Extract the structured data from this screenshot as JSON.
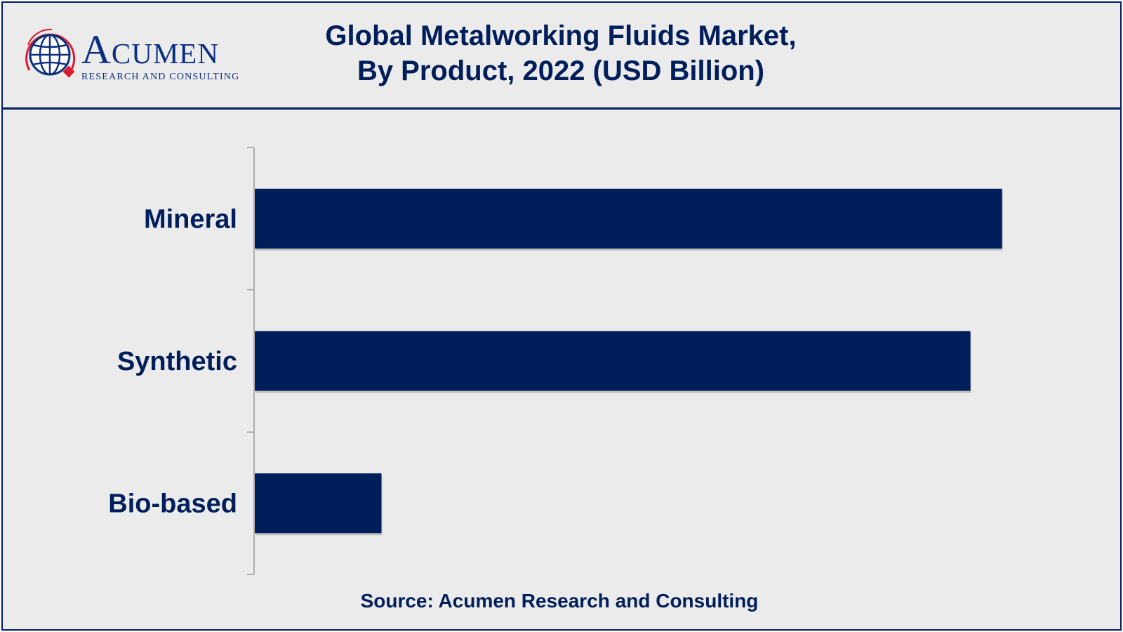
{
  "header": {
    "brand_name": "Acumen",
    "brand_tagline": "RESEARCH AND CONSULTING",
    "title_line1": "Global Metalworking Fluids Market,",
    "title_line2": "By Product, 2022 (USD Billion)"
  },
  "chart_data": {
    "type": "bar",
    "orientation": "horizontal",
    "title": "Global Metalworking Fluids Market, By Product, 2022 (USD Billion)",
    "categories": [
      "Mineral",
      "Synthetic",
      "Bio-based"
    ],
    "values": [
      5.9,
      5.65,
      1.0
    ],
    "xlim": [
      0,
      6.5
    ],
    "bar_color": "#001e5a",
    "grid": false,
    "legend": "none"
  },
  "footer": {
    "source": "Source: Acumen Research and Consulting"
  },
  "colors": {
    "primary": "#001e5a",
    "background": "#ebebeb",
    "accent": "#d81e2c"
  }
}
